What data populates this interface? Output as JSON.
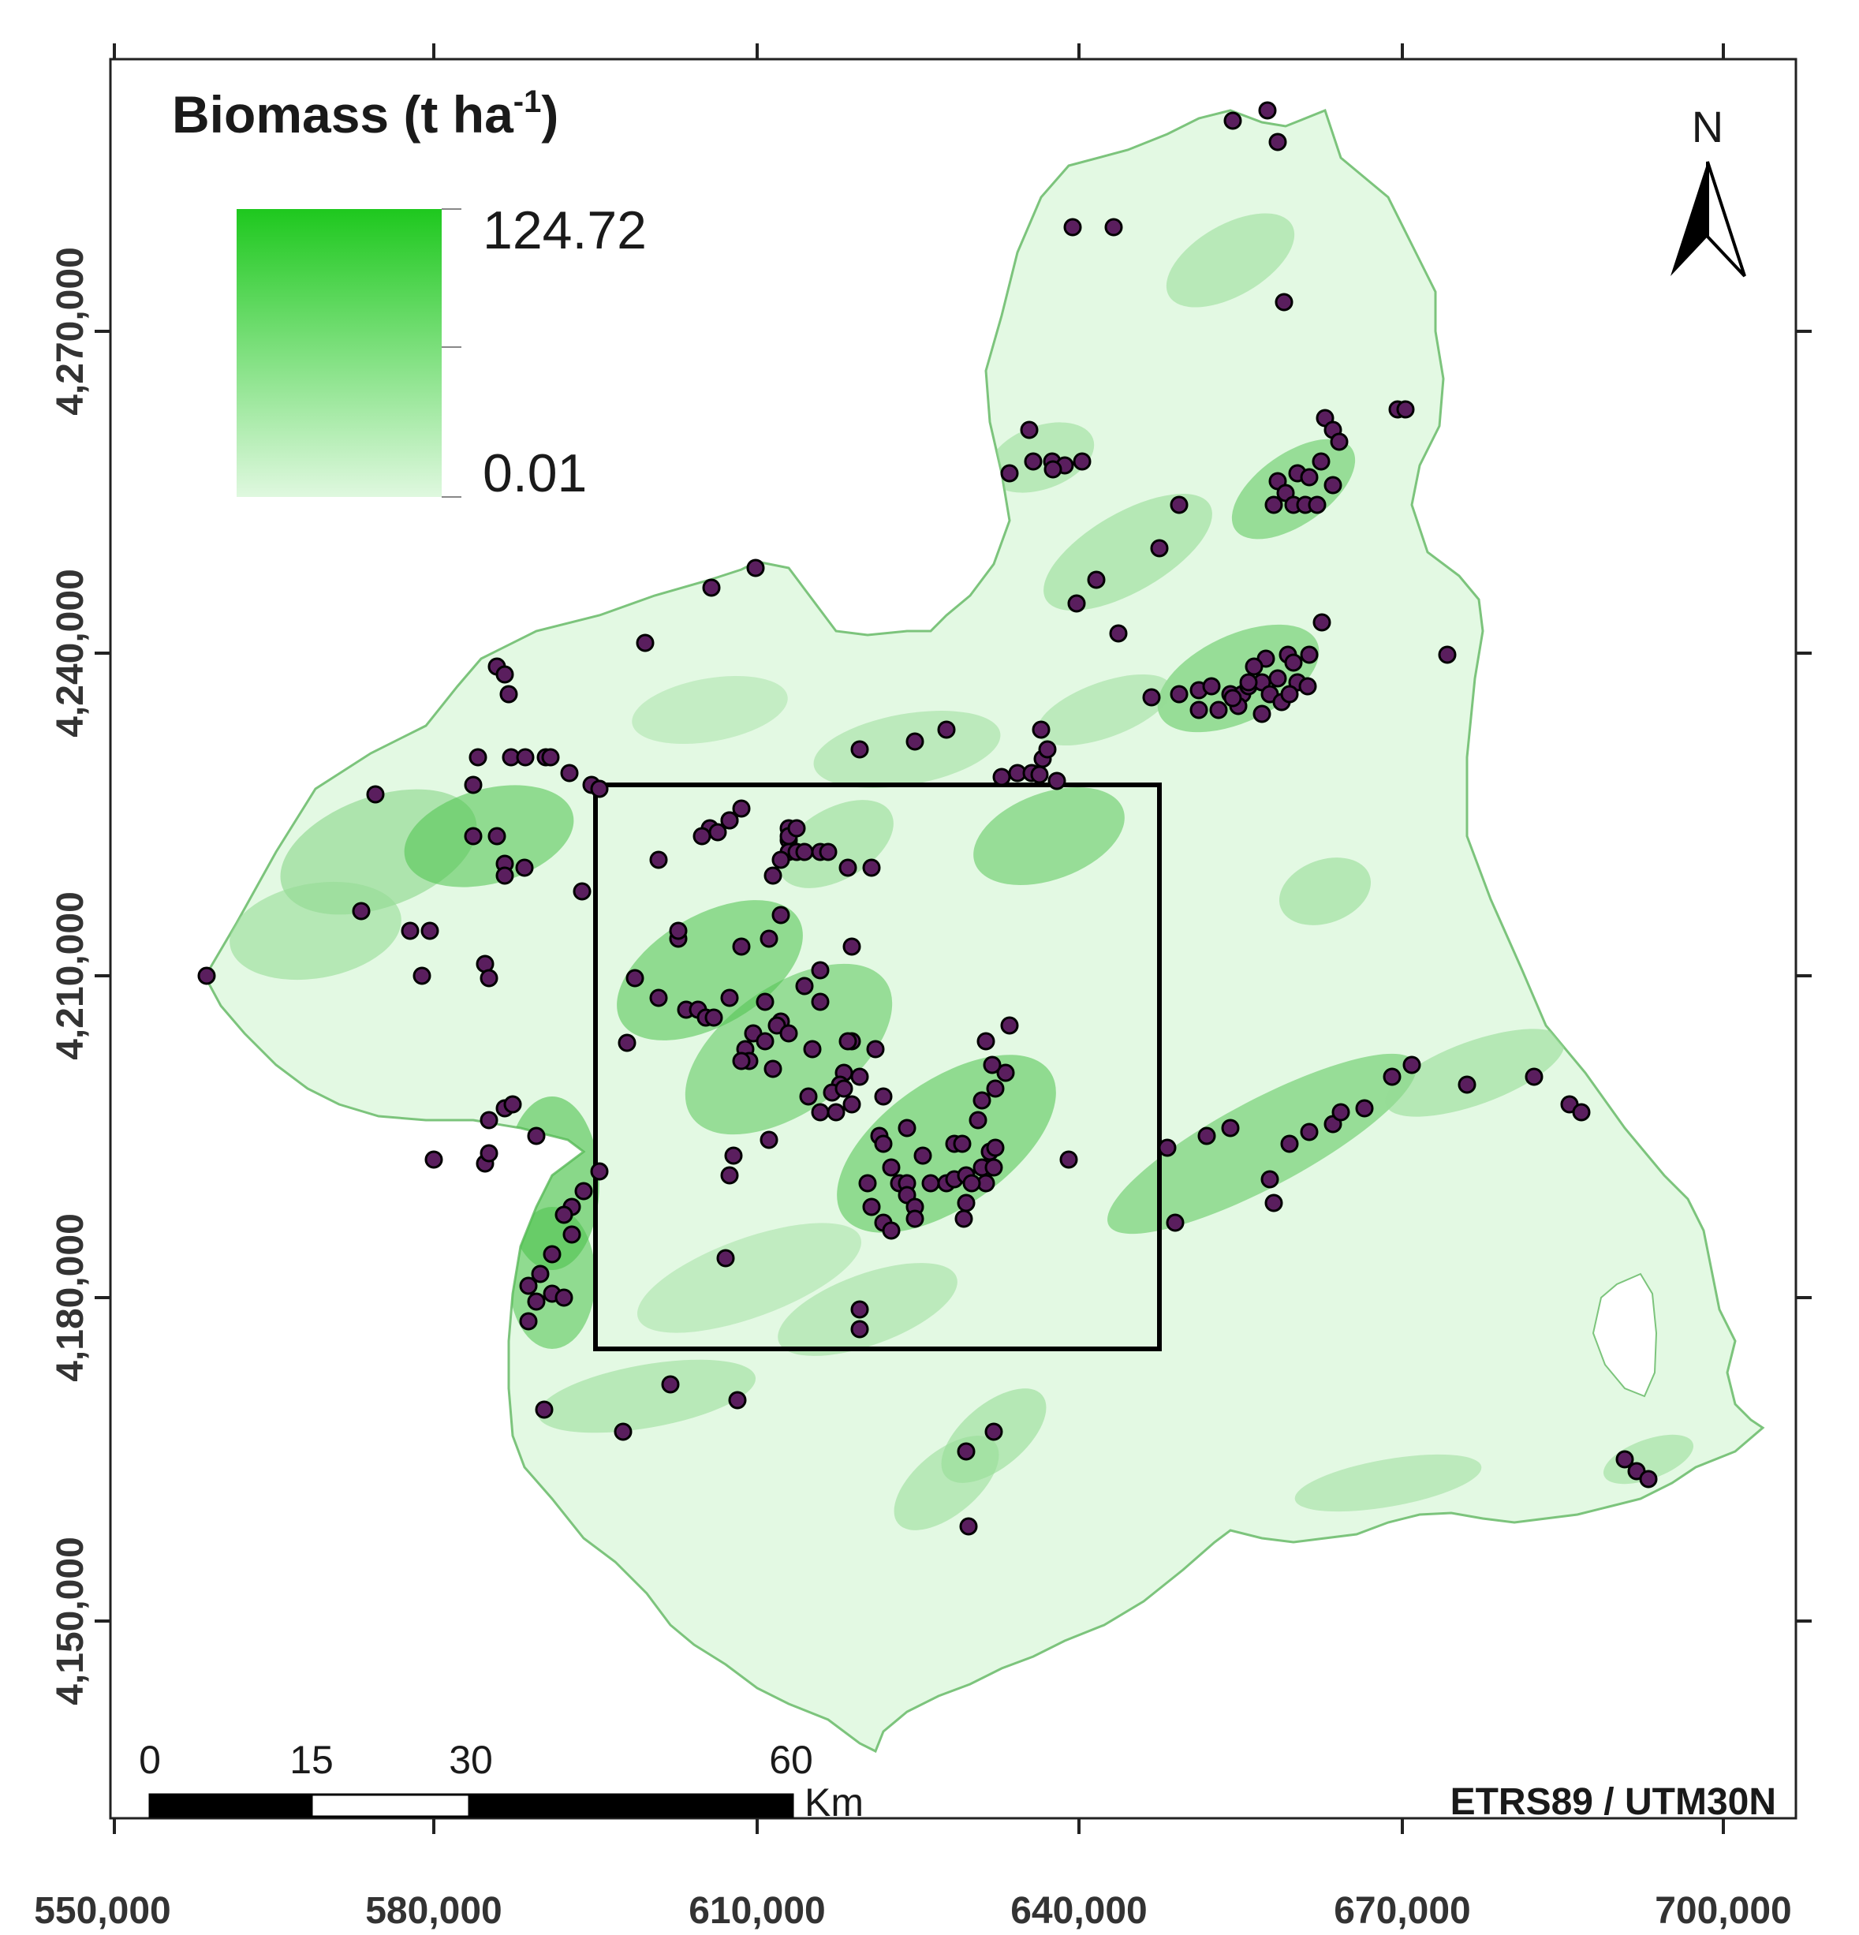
{
  "legend": {
    "title": "Biomass (t ha",
    "title_sup": "-1",
    "title_close": ")",
    "max_label": "124.72",
    "min_label": "0.01",
    "color_high": "#1ec81e",
    "color_low": "#dff8df"
  },
  "north_arrow": {
    "label": "N",
    "icon": "north-arrow-icon"
  },
  "scale_bar": {
    "labels": [
      "0",
      "15",
      "30",
      "60"
    ],
    "unit": "Km"
  },
  "crs": "ETRS89 / UTM30N",
  "axes": {
    "x_ticks": [
      "550,000",
      "580,000",
      "610,000",
      "640,000",
      "670,000",
      "700,000"
    ],
    "y_ticks": [
      "4,270,000",
      "4,240,000",
      "4,210,000",
      "4,180,000",
      "4,150,000"
    ]
  },
  "colors": {
    "map_fill": "#e3f9e3",
    "region_outline": "#7cc47c",
    "vegetation_dark": "#4cc24c",
    "vegetation_mid": "#96dc96",
    "sample_point_fill": "#5a1e5e",
    "sample_point_stroke": "#000000",
    "study_box": "#000000"
  }
}
